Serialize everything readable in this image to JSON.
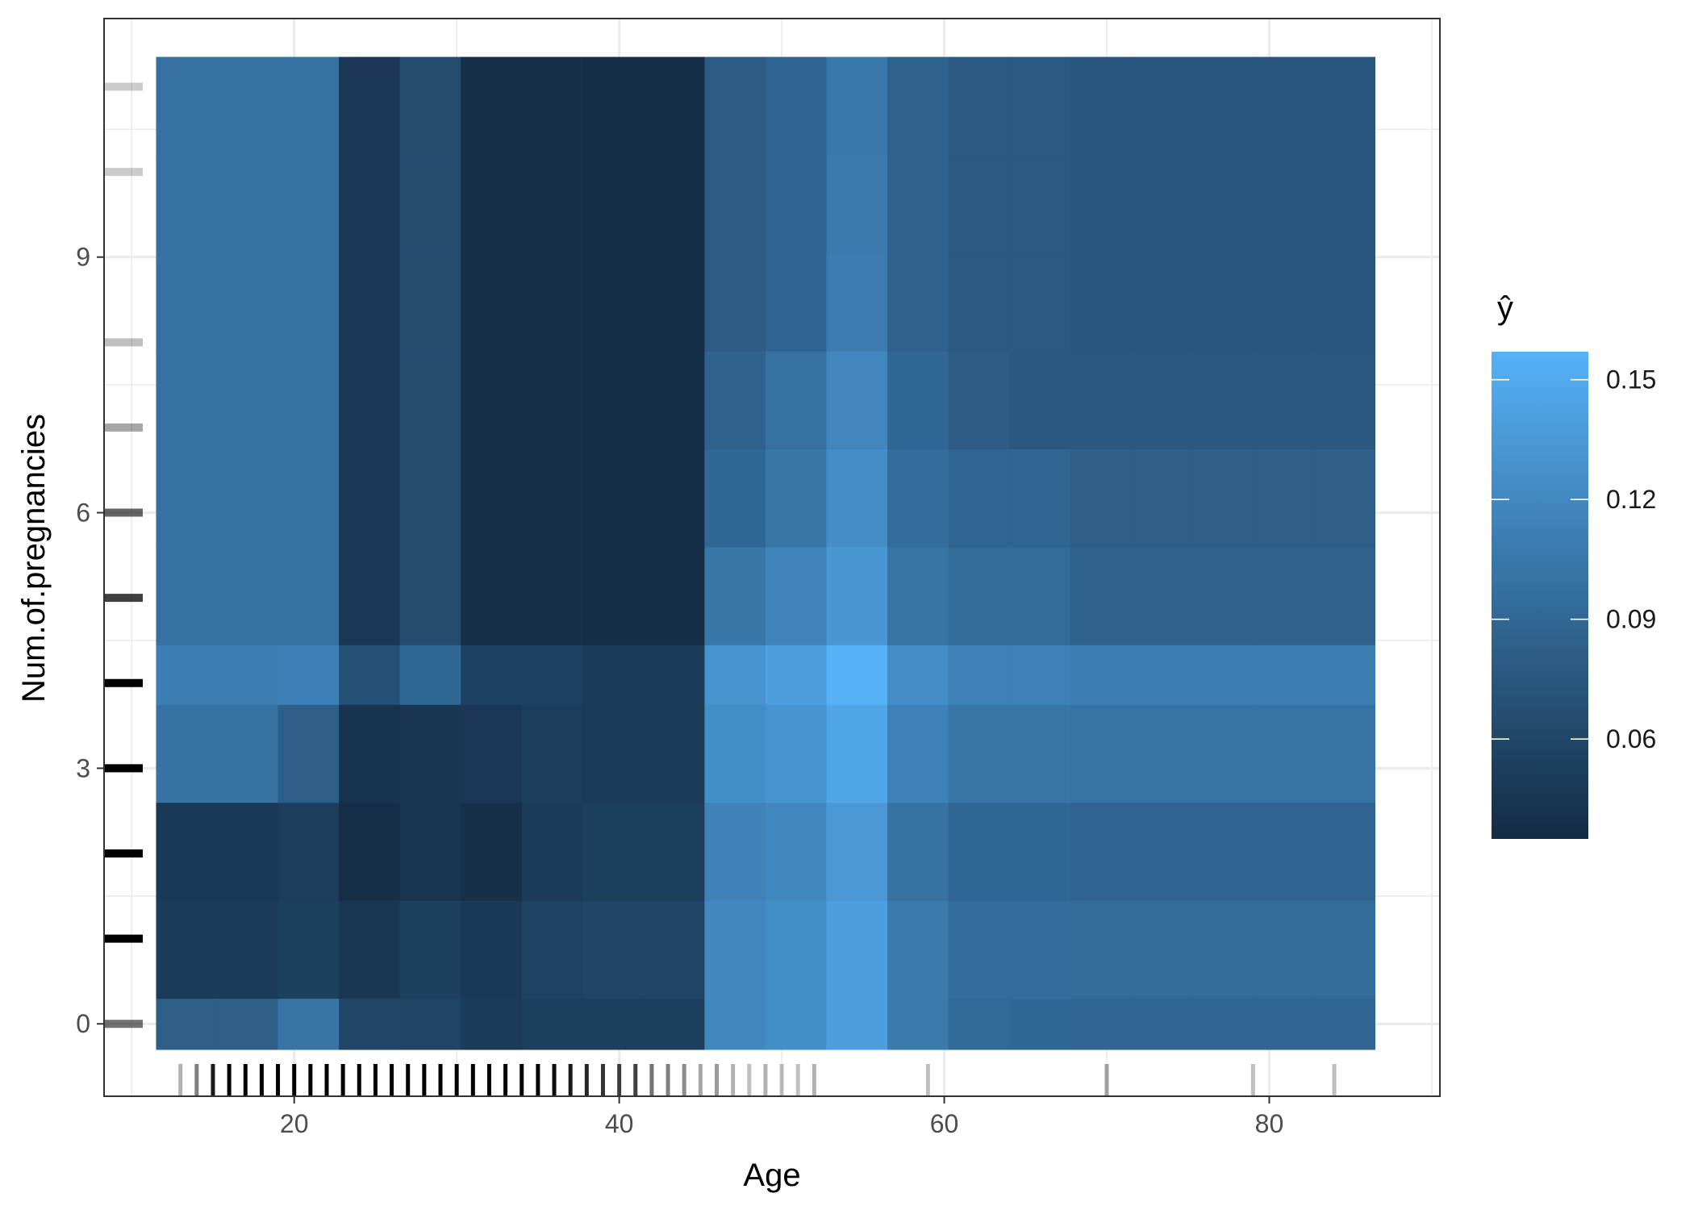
{
  "chart_data": {
    "type": "heatmap",
    "xlabel": "Age",
    "ylabel": "Num.of.pregnancies",
    "legend_title": "ŷ",
    "legend_position": "right",
    "grid": true,
    "xlim": [
      8.3,
      90.5
    ],
    "ylim": [
      -0.85,
      11.8
    ],
    "x_ticks": [
      20,
      40,
      60,
      80
    ],
    "y_ticks": [
      0,
      3,
      6,
      9
    ],
    "x_minor_ticks": [
      10,
      30,
      50,
      70,
      90
    ],
    "y_minor_ticks": [
      1.5,
      4.5,
      7.5,
      10.5
    ],
    "color_scale": {
      "low": "#132B43",
      "high": "#56B1F7",
      "min": 0.035,
      "max": 0.157,
      "ticks": [
        0.06,
        0.09,
        0.12,
        0.15
      ]
    },
    "x_edges": [
      11.5,
      15.25,
      19,
      22.75,
      26.5,
      30.25,
      34,
      37.75,
      41.5,
      45.25,
      49,
      52.75,
      56.5,
      60.25,
      64,
      67.75,
      71.5,
      75.25,
      79,
      82.75,
      86.5
    ],
    "y_edges": [
      -0.3,
      0.3,
      1.45,
      2.6,
      3.75,
      4.45,
      5.6,
      6.75,
      7.9,
      9.05,
      10.2,
      11.35
    ],
    "values": [
      [
        0.082,
        0.082,
        0.101,
        0.06,
        0.057,
        0.05,
        0.053,
        0.053,
        0.053,
        0.119,
        0.125,
        0.14,
        0.107,
        0.092,
        0.09,
        0.089,
        0.089,
        0.089,
        0.089,
        0.089
      ],
      [
        0.05,
        0.05,
        0.054,
        0.046,
        0.054,
        0.048,
        0.056,
        0.058,
        0.058,
        0.119,
        0.125,
        0.14,
        0.107,
        0.095,
        0.095,
        0.093,
        0.093,
        0.093,
        0.093,
        0.093
      ],
      [
        0.048,
        0.048,
        0.052,
        0.039,
        0.045,
        0.04,
        0.05,
        0.053,
        0.053,
        0.114,
        0.12,
        0.133,
        0.1,
        0.09,
        0.09,
        0.087,
        0.087,
        0.087,
        0.087,
        0.087
      ],
      [
        0.1,
        0.1,
        0.082,
        0.042,
        0.045,
        0.047,
        0.052,
        0.05,
        0.05,
        0.125,
        0.131,
        0.146,
        0.113,
        0.103,
        0.103,
        0.101,
        0.101,
        0.101,
        0.101,
        0.101
      ],
      [
        0.11,
        0.11,
        0.112,
        0.07,
        0.09,
        0.055,
        0.055,
        0.05,
        0.05,
        0.13,
        0.14,
        0.157,
        0.123,
        0.113,
        0.113,
        0.11,
        0.11,
        0.11,
        0.11,
        0.11
      ],
      [
        0.099,
        0.099,
        0.099,
        0.047,
        0.065,
        0.04,
        0.04,
        0.038,
        0.038,
        0.104,
        0.115,
        0.132,
        0.101,
        0.093,
        0.093,
        0.086,
        0.086,
        0.086,
        0.086,
        0.086
      ],
      [
        0.099,
        0.099,
        0.099,
        0.047,
        0.065,
        0.04,
        0.04,
        0.038,
        0.038,
        0.09,
        0.104,
        0.124,
        0.095,
        0.088,
        0.088,
        0.082,
        0.082,
        0.082,
        0.082,
        0.082
      ],
      [
        0.099,
        0.099,
        0.099,
        0.047,
        0.065,
        0.04,
        0.04,
        0.038,
        0.038,
        0.086,
        0.098,
        0.118,
        0.09,
        0.08,
        0.076,
        0.076,
        0.076,
        0.076,
        0.076,
        0.076
      ],
      [
        0.099,
        0.099,
        0.099,
        0.047,
        0.065,
        0.04,
        0.04,
        0.038,
        0.038,
        0.08,
        0.087,
        0.109,
        0.085,
        0.077,
        0.077,
        0.075,
        0.075,
        0.075,
        0.075,
        0.075
      ],
      [
        0.099,
        0.099,
        0.099,
        0.047,
        0.065,
        0.04,
        0.04,
        0.038,
        0.038,
        0.08,
        0.087,
        0.107,
        0.085,
        0.077,
        0.077,
        0.075,
        0.075,
        0.075,
        0.075,
        0.075
      ],
      [
        0.099,
        0.099,
        0.099,
        0.047,
        0.065,
        0.04,
        0.04,
        0.038,
        0.038,
        0.08,
        0.087,
        0.105,
        0.085,
        0.077,
        0.077,
        0.075,
        0.075,
        0.075,
        0.075,
        0.075
      ]
    ],
    "rug_x": [
      {
        "v": 13,
        "a": 0.3
      },
      {
        "v": 14,
        "a": 0.5
      },
      {
        "v": 15,
        "a": 0.9
      },
      {
        "v": 16,
        "a": 1
      },
      {
        "v": 17,
        "a": 1
      },
      {
        "v": 18,
        "a": 1
      },
      {
        "v": 19,
        "a": 1
      },
      {
        "v": 20,
        "a": 1
      },
      {
        "v": 21,
        "a": 1
      },
      {
        "v": 22,
        "a": 1
      },
      {
        "v": 23,
        "a": 1
      },
      {
        "v": 24,
        "a": 1
      },
      {
        "v": 25,
        "a": 1
      },
      {
        "v": 26,
        "a": 1
      },
      {
        "v": 27,
        "a": 1
      },
      {
        "v": 28,
        "a": 1
      },
      {
        "v": 29,
        "a": 1
      },
      {
        "v": 30,
        "a": 1
      },
      {
        "v": 31,
        "a": 1
      },
      {
        "v": 32,
        "a": 1
      },
      {
        "v": 33,
        "a": 1
      },
      {
        "v": 34,
        "a": 1
      },
      {
        "v": 35,
        "a": 1
      },
      {
        "v": 36,
        "a": 0.95
      },
      {
        "v": 37,
        "a": 0.9
      },
      {
        "v": 38,
        "a": 0.85
      },
      {
        "v": 39,
        "a": 0.8
      },
      {
        "v": 40,
        "a": 0.75
      },
      {
        "v": 41,
        "a": 0.75
      },
      {
        "v": 42,
        "a": 0.55
      },
      {
        "v": 43,
        "a": 0.5
      },
      {
        "v": 44,
        "a": 0.45
      },
      {
        "v": 45,
        "a": 0.35
      },
      {
        "v": 46,
        "a": 0.4
      },
      {
        "v": 47,
        "a": 0.3
      },
      {
        "v": 48,
        "a": 0.25
      },
      {
        "v": 49,
        "a": 0.3
      },
      {
        "v": 50,
        "a": 0.25
      },
      {
        "v": 51,
        "a": 0.25
      },
      {
        "v": 52,
        "a": 0.3
      },
      {
        "v": 59,
        "a": 0.25
      },
      {
        "v": 70,
        "a": 0.35
      },
      {
        "v": 79,
        "a": 0.25
      },
      {
        "v": 84,
        "a": 0.25
      }
    ],
    "rug_y": [
      {
        "v": 0,
        "a": 0.55
      },
      {
        "v": 1,
        "a": 1
      },
      {
        "v": 2,
        "a": 1
      },
      {
        "v": 3,
        "a": 1
      },
      {
        "v": 4,
        "a": 1
      },
      {
        "v": 5,
        "a": 0.75
      },
      {
        "v": 6,
        "a": 0.6
      },
      {
        "v": 7,
        "a": 0.35
      },
      {
        "v": 8,
        "a": 0.25
      },
      {
        "v": 10,
        "a": 0.2
      },
      {
        "v": 11,
        "a": 0.2
      }
    ]
  }
}
